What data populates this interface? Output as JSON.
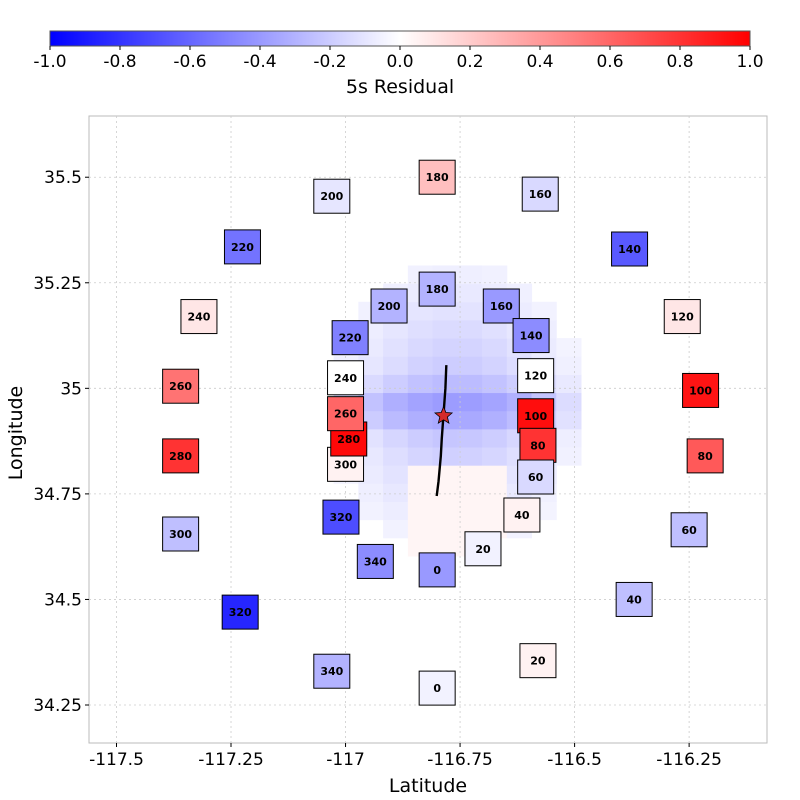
{
  "chart_data": {
    "type": "scatter",
    "title": "",
    "xlabel": "Latitude",
    "ylabel": "Longitude",
    "xlim": [
      -117.56,
      -116.08
    ],
    "ylim": [
      34.16,
      35.645
    ],
    "xticks": [
      -117.5,
      -117.25,
      -117,
      -116.75,
      -116.5,
      -116.25
    ],
    "xtick_labels": [
      "-117.5",
      "-117.25",
      "-117",
      "-116.75",
      "-116.5",
      "-116.25"
    ],
    "yticks": [
      34.25,
      34.5,
      34.75,
      35,
      35.25,
      35.5
    ],
    "ytick_labels": [
      "34.25",
      "34.5",
      "34.75",
      "35",
      "35.25",
      "35.5"
    ],
    "grid": true,
    "colorbar": {
      "label": "5s Residual",
      "min": -1.0,
      "max": 1.0,
      "ticks": [
        -1.0,
        -0.8,
        -0.6,
        -0.4,
        -0.2,
        0.0,
        0.2,
        0.4,
        0.6,
        0.8,
        1.0
      ],
      "tick_labels": [
        "-1.0",
        "-0.8",
        "-0.6",
        "-0.4",
        "-0.2",
        "0.0",
        "0.2",
        "0.4",
        "0.6",
        "0.8",
        "1.0"
      ],
      "low_color": "#0000ff",
      "mid_color": "#ffffff",
      "high_color": "#ff0000"
    },
    "epicenter": {
      "x": -116.786,
      "y": 34.935,
      "color": "#d42a2a"
    },
    "fault_trace": [
      [
        -116.78,
        35.055
      ],
      [
        -116.782,
        35.0
      ],
      [
        -116.786,
        34.94
      ],
      [
        -116.79,
        34.88
      ],
      [
        -116.792,
        34.84
      ],
      [
        -116.797,
        34.78
      ],
      [
        -116.801,
        34.745
      ]
    ],
    "stations": [
      {
        "label": "180",
        "x": -116.8,
        "y": 35.5,
        "value": 0.25
      },
      {
        "label": "160",
        "x": -116.575,
        "y": 35.46,
        "value": -0.15
      },
      {
        "label": "140",
        "x": -116.38,
        "y": 35.33,
        "value": -0.65
      },
      {
        "label": "120",
        "x": -116.265,
        "y": 35.17,
        "value": 0.1
      },
      {
        "label": "100",
        "x": -116.225,
        "y": 34.995,
        "value": 0.92
      },
      {
        "label": "80",
        "x": -116.215,
        "y": 34.84,
        "value": 0.65
      },
      {
        "label": "60",
        "x": -116.25,
        "y": 34.665,
        "value": -0.25
      },
      {
        "label": "40",
        "x": -116.37,
        "y": 34.5,
        "value": -0.25
      },
      {
        "label": "20",
        "x": -116.58,
        "y": 34.355,
        "value": 0.05
      },
      {
        "label": "0",
        "x": -116.8,
        "y": 34.29,
        "value": -0.05
      },
      {
        "label": "340",
        "x": -117.03,
        "y": 34.33,
        "value": -0.3
      },
      {
        "label": "320",
        "x": -117.23,
        "y": 34.47,
        "value": -0.85
      },
      {
        "label": "300",
        "x": -117.36,
        "y": 34.655,
        "value": -0.25
      },
      {
        "label": "280",
        "x": -117.36,
        "y": 34.84,
        "value": 0.8
      },
      {
        "label": "260",
        "x": -117.36,
        "y": 35.005,
        "value": 0.55
      },
      {
        "label": "240",
        "x": -117.32,
        "y": 35.17,
        "value": 0.1
      },
      {
        "label": "220",
        "x": -117.225,
        "y": 35.335,
        "value": -0.55
      },
      {
        "label": "200",
        "x": -117.03,
        "y": 35.455,
        "value": -0.1
      },
      {
        "label": "180",
        "x": -116.8,
        "y": 35.235,
        "value": -0.3
      },
      {
        "label": "160",
        "x": -116.66,
        "y": 35.195,
        "value": -0.4
      },
      {
        "label": "140",
        "x": -116.595,
        "y": 35.125,
        "value": -0.45
      },
      {
        "label": "120",
        "x": -116.585,
        "y": 35.03,
        "value": 0.0
      },
      {
        "label": "100",
        "x": -116.585,
        "y": 34.935,
        "value": 0.95
      },
      {
        "label": "80",
        "x": -116.58,
        "y": 34.865,
        "value": 0.8
      },
      {
        "label": "60",
        "x": -116.585,
        "y": 34.79,
        "value": -0.15
      },
      {
        "label": "40",
        "x": -116.615,
        "y": 34.7,
        "value": 0.05
      },
      {
        "label": "20",
        "x": -116.7,
        "y": 34.62,
        "value": -0.05
      },
      {
        "label": "0",
        "x": -116.8,
        "y": 34.57,
        "value": -0.4
      },
      {
        "label": "340",
        "x": -116.935,
        "y": 34.59,
        "value": -0.45
      },
      {
        "label": "320",
        "x": -117.01,
        "y": 34.695,
        "value": -0.7
      },
      {
        "label": "300",
        "x": -117.0,
        "y": 34.82,
        "value": 0.05
      },
      {
        "label": "280",
        "x": -116.993,
        "y": 34.88,
        "value": 0.97
      },
      {
        "label": "260",
        "x": -117.0,
        "y": 34.94,
        "value": 0.6
      },
      {
        "label": "240",
        "x": -117.0,
        "y": 35.025,
        "value": 0.0
      },
      {
        "label": "220",
        "x": -116.99,
        "y": 35.12,
        "value": -0.5
      },
      {
        "label": "200",
        "x": -116.905,
        "y": 35.195,
        "value": -0.3
      }
    ]
  }
}
